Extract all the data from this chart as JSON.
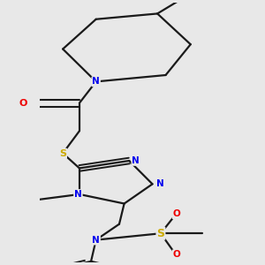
{
  "background_color": "#e8e8e8",
  "bond_color": "#1a1a1a",
  "atom_colors": {
    "N": "#0000ee",
    "O": "#ee0000",
    "S": "#ccaa00",
    "C": "#1a1a1a"
  },
  "figsize": [
    3.0,
    3.0
  ],
  "dpi": 100,
  "xlim": [
    0.15,
    0.85
  ],
  "ylim": [
    0.02,
    1.0
  ]
}
